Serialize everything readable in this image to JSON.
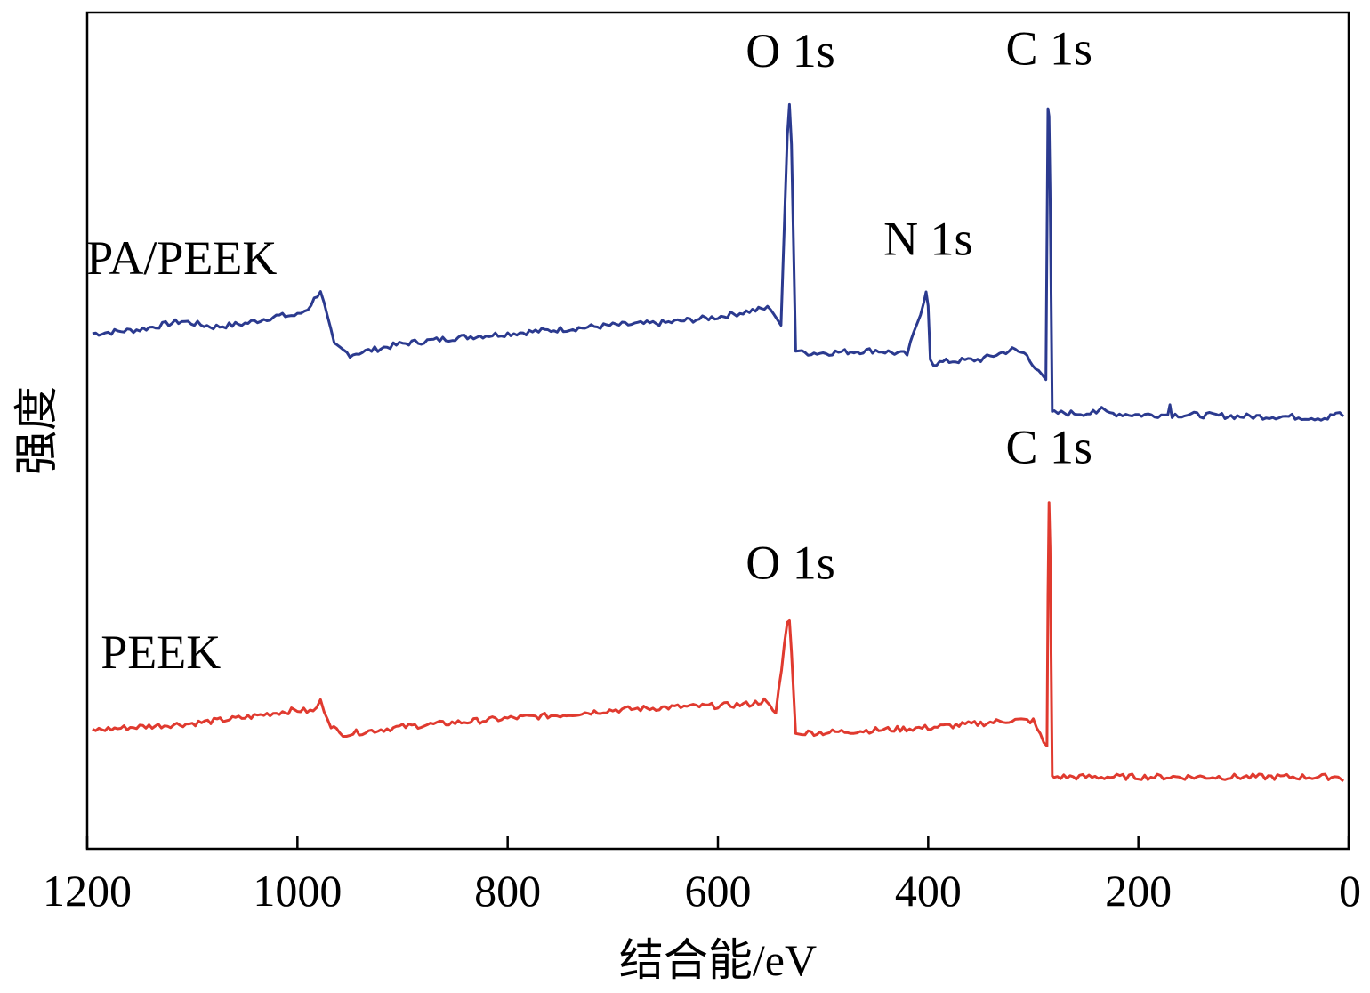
{
  "chart_data": {
    "type": "line",
    "title": "",
    "xlabel": "结合能/eV",
    "ylabel": "强度",
    "xlim": [
      1200,
      0
    ],
    "x_reversed": true,
    "ylim": [
      0,
      100
    ],
    "y_ticks_shown": false,
    "x_ticks": [
      1200,
      1000,
      800,
      600,
      400,
      200,
      0
    ],
    "x_tick_labels": [
      "1200",
      "1000",
      "800",
      "600",
      "400",
      "200",
      "0"
    ],
    "grid": false,
    "series": [
      {
        "name": "PA/PEEK",
        "color": "#2b3a8f",
        "x": [
          1195,
          1150,
          1110,
          1080,
          1050,
          1020,
          1000,
          990,
          978,
          965,
          950,
          900,
          850,
          800,
          750,
          700,
          650,
          600,
          570,
          550,
          540,
          534,
          532,
          530,
          526,
          520,
          500,
          450,
          420,
          404,
          402,
          400,
          398,
          395,
          380,
          350,
          320,
          306,
          295,
          288,
          286,
          285,
          284,
          282,
          280,
          270,
          240,
          235,
          230,
          200,
          172,
          170,
          168,
          150,
          100,
          60,
          20,
          12,
          5
        ],
        "y": [
          61.6,
          62.1,
          63.1,
          62.4,
          62.8,
          63.7,
          63.8,
          64.6,
          66.8,
          60.2,
          59.1,
          60.4,
          61.1,
          61.6,
          62.1,
          62.6,
          62.9,
          63.6,
          64.3,
          64.7,
          62.6,
          85.2,
          89.0,
          84.2,
          59.5,
          59.3,
          59.3,
          59.6,
          59.1,
          65.4,
          66.6,
          64.9,
          58.5,
          58.0,
          58.3,
          58.5,
          59.7,
          59.1,
          56.9,
          56.1,
          88.5,
          87.6,
          78.7,
          52.3,
          52.1,
          52.1,
          52.1,
          52.8,
          52.1,
          51.9,
          51.9,
          53.1,
          51.9,
          51.9,
          51.7,
          51.7,
          51.5,
          52.1,
          51.7
        ],
        "label_text": "PA/PEEK",
        "peaks": [
          {
            "label": "O 1s",
            "x": 531
          },
          {
            "label": "N 1s",
            "x": 400
          },
          {
            "label": "C 1s",
            "x": 285
          }
        ]
      },
      {
        "name": "PEEK",
        "color": "#e03a2f",
        "x": [
          1195,
          1150,
          1100,
          1050,
          1020,
          1000,
          985,
          978,
          968,
          960,
          950,
          900,
          850,
          800,
          750,
          700,
          650,
          600,
          570,
          556,
          545,
          534,
          532,
          530,
          526,
          520,
          500,
          450,
          400,
          350,
          320,
          300,
          290,
          287,
          286,
          285,
          284,
          282,
          280,
          250,
          200,
          170,
          150,
          100,
          50,
          10,
          5
        ],
        "y": [
          14.2,
          14.6,
          15.0,
          15.7,
          16.3,
          16.6,
          16.4,
          17.6,
          14.8,
          13.8,
          13.8,
          14.6,
          15.1,
          15.6,
          16.0,
          16.6,
          16.9,
          17.1,
          17.3,
          17.7,
          16.2,
          27.1,
          27.3,
          23.5,
          13.8,
          13.9,
          13.9,
          14.2,
          14.5,
          15.0,
          15.4,
          15.3,
          12.7,
          12.3,
          30.2,
          41.4,
          36.0,
          8.7,
          8.6,
          8.6,
          8.6,
          8.6,
          8.6,
          8.6,
          8.6,
          8.6,
          8.1
        ],
        "label_text": "PEEK",
        "peaks": [
          {
            "label": "O 1s",
            "x": 531
          },
          {
            "label": "C 1s",
            "x": 285
          }
        ]
      }
    ],
    "annotations": [
      {
        "series": "PA/PEEK",
        "text": "O 1s",
        "x": 531,
        "y": 93.5
      },
      {
        "series": "PA/PEEK",
        "text": "N 1s",
        "x": 400,
        "y": 71.0
      },
      {
        "series": "PA/PEEK",
        "text": "C 1s",
        "x": 285,
        "y": 93.8
      },
      {
        "series": "PEEK",
        "text": "C 1s",
        "x": 285,
        "y": 46.1
      },
      {
        "series": "PEEK",
        "text": "O 1s",
        "x": 531,
        "y": 32.3
      },
      {
        "series": "PA/PEEK",
        "text": "PA/PEEK",
        "x": 1110,
        "y": 68.7
      },
      {
        "series": "PEEK",
        "text": "PEEK",
        "x": 1130,
        "y": 21.6
      }
    ]
  }
}
